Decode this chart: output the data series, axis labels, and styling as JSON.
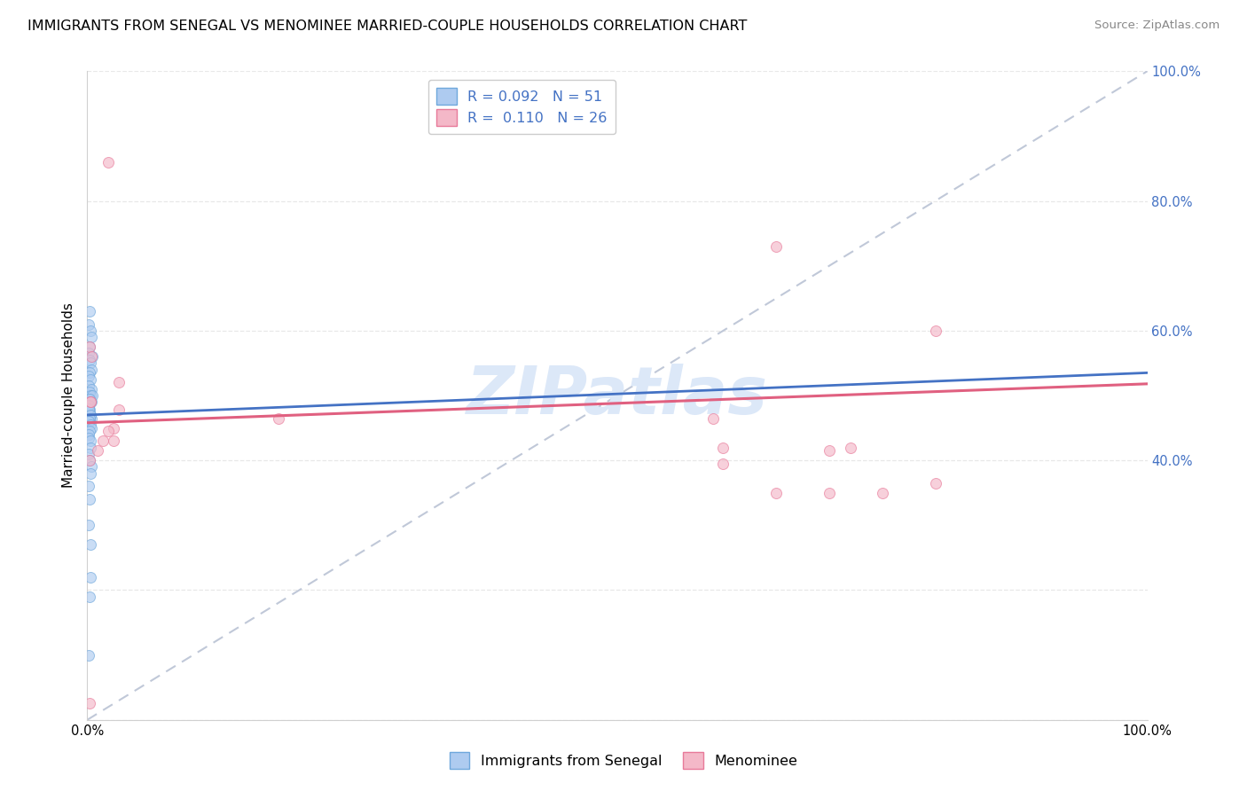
{
  "title": "IMMIGRANTS FROM SENEGAL VS MENOMINEE MARRIED-COUPLE HOUSEHOLDS CORRELATION CHART",
  "source": "Source: ZipAtlas.com",
  "ylabel": "Married-couple Households",
  "xlim": [
    0,
    1
  ],
  "ylim": [
    0,
    1.05
  ],
  "legend_r1": "R = 0.092   N = 51",
  "legend_r2": "R =  0.110   N = 26",
  "blue_scatter_x": [
    0.002,
    0.001,
    0.003,
    0.004,
    0.002,
    0.001,
    0.005,
    0.002,
    0.003,
    0.004,
    0.002,
    0.001,
    0.003,
    0.001,
    0.004,
    0.002,
    0.003,
    0.002,
    0.004,
    0.001,
    0.001,
    0.002,
    0.003,
    0.004,
    0.002,
    0.005,
    0.002,
    0.003,
    0.001,
    0.001,
    0.003,
    0.002,
    0.001,
    0.003,
    0.004,
    0.002,
    0.001,
    0.001,
    0.003,
    0.003,
    0.001,
    0.002,
    0.004,
    0.003,
    0.001,
    0.002,
    0.001,
    0.003,
    0.003,
    0.002,
    0.001
  ],
  "blue_scatter_y": [
    0.63,
    0.61,
    0.6,
    0.59,
    0.575,
    0.565,
    0.56,
    0.555,
    0.55,
    0.54,
    0.535,
    0.53,
    0.525,
    0.515,
    0.51,
    0.505,
    0.5,
    0.495,
    0.49,
    0.485,
    0.48,
    0.478,
    0.47,
    0.465,
    0.46,
    0.5,
    0.495,
    0.49,
    0.485,
    0.48,
    0.47,
    0.465,
    0.46,
    0.455,
    0.45,
    0.445,
    0.44,
    0.435,
    0.43,
    0.42,
    0.41,
    0.4,
    0.39,
    0.38,
    0.36,
    0.34,
    0.3,
    0.27,
    0.22,
    0.19,
    0.1
  ],
  "pink_scatter_x": [
    0.002,
    0.004,
    0.02,
    0.03,
    0.003,
    0.025,
    0.18,
    0.003,
    0.59,
    0.65,
    0.7,
    0.72,
    0.75,
    0.8,
    0.002,
    0.01,
    0.02,
    0.03,
    0.6,
    0.65,
    0.7,
    0.8,
    0.002,
    0.015,
    0.025,
    0.6
  ],
  "pink_scatter_y": [
    0.575,
    0.56,
    0.86,
    0.52,
    0.49,
    0.45,
    0.465,
    0.49,
    0.465,
    0.73,
    0.415,
    0.42,
    0.35,
    0.6,
    0.025,
    0.415,
    0.445,
    0.478,
    0.42,
    0.35,
    0.35,
    0.365,
    0.4,
    0.43,
    0.43,
    0.395
  ],
  "blue_scatter_color": "#aecbf0",
  "blue_scatter_edge": "#6fa8dc",
  "pink_scatter_color": "#f4b8c8",
  "pink_scatter_edge": "#e87a9a",
  "scatter_size": 75,
  "scatter_alpha": 0.65,
  "blue_trend_intercept": 0.47,
  "blue_trend_slope": 0.065,
  "pink_trend_intercept": 0.458,
  "pink_trend_slope": 0.06,
  "blue_trend_color": "#4472c4",
  "pink_trend_color": "#e06080",
  "diag_color": "#c0c8d8",
  "grid_color": "#e8e8e8",
  "background_color": "#ffffff",
  "watermark_text": "ZIPatlas",
  "watermark_color": "#dce8f8",
  "title_fontsize": 11.5,
  "tick_fontsize": 10.5,
  "source_fontsize": 9.5,
  "right_tick_color": "#4472c4"
}
